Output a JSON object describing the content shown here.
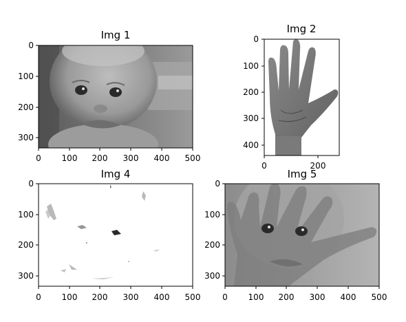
{
  "figure": {
    "panels": [
      {
        "title": "Img 1",
        "x_ticks": [
          "0",
          "100",
          "200",
          "300",
          "400",
          "500"
        ],
        "y_ticks": [
          "0",
          "100",
          "200",
          "300"
        ],
        "content": "baby-face-grayscale"
      },
      {
        "title": "Img 2",
        "x_ticks": [
          "0",
          "200"
        ],
        "y_ticks": [
          "0",
          "100",
          "200",
          "300",
          "400"
        ],
        "content": "open-hand-grayscale"
      },
      {
        "title": "Img 4",
        "x_ticks": [
          "0",
          "100",
          "200",
          "300",
          "400",
          "500"
        ],
        "y_ticks": [
          "0",
          "100",
          "200",
          "300"
        ],
        "content": "sparse-difference-image"
      },
      {
        "title": "Img 5",
        "x_ticks": [
          "0",
          "100",
          "200",
          "300",
          "400",
          "500"
        ],
        "y_ticks": [
          "0",
          "100",
          "200",
          "300"
        ],
        "content": "hand-over-face-blend"
      }
    ]
  }
}
